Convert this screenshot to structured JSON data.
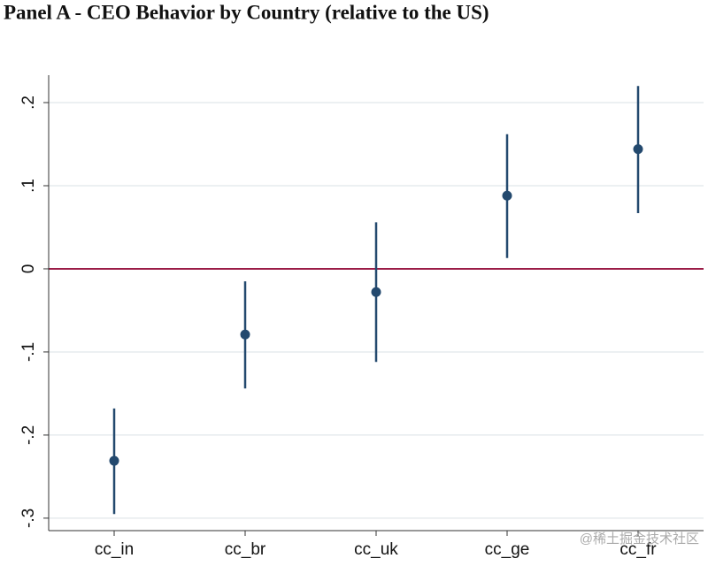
{
  "chart_data": {
    "type": "coefplot",
    "title": "Panel A - CEO Behavior by Country (relative to the US)",
    "categories": [
      "cc_in",
      "cc_br",
      "cc_uk",
      "cc_ge",
      "cc_fr"
    ],
    "series": [
      {
        "color": "#23496e",
        "values": [
          -0.231,
          -0.079,
          -0.028,
          0.088,
          0.144
        ],
        "lower": [
          -0.295,
          -0.144,
          -0.112,
          0.013,
          0.067
        ],
        "upper": [
          -0.168,
          -0.015,
          0.056,
          0.162,
          0.22
        ]
      }
    ],
    "ylim": [
      -0.315,
      0.233
    ],
    "yticks": [
      {
        "value": 0.2,
        "label": ".2"
      },
      {
        "value": 0.1,
        "label": ".1"
      },
      0,
      {
        "value": -0.1,
        "label": "-.1"
      },
      {
        "value": -0.2,
        "label": "-.2"
      },
      {
        "value": -0.3,
        "label": "-.3"
      }
    ],
    "grid": true,
    "reference_line": {
      "value": 0,
      "color": "#9b1c47"
    },
    "watermark": "@稀土掘金技术社区"
  }
}
